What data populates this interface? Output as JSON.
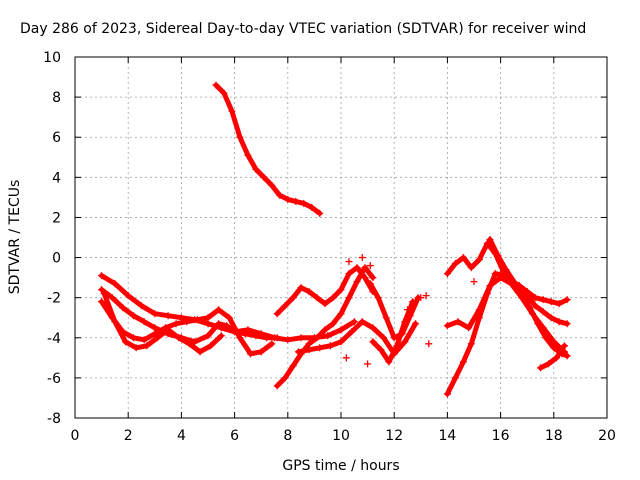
{
  "chart_data": {
    "type": "scatter",
    "title": "Day 286 of 2023, Sidereal Day-to-day VTEC variation (SDTVAR) for receiver wind",
    "xlabel": "GPS time / hours",
    "ylabel": "SDTVAR / TECUs",
    "xlim": [
      0,
      20
    ],
    "ylim": [
      -8,
      10
    ],
    "xticks": [
      0,
      2,
      4,
      6,
      8,
      10,
      12,
      14,
      16,
      18,
      20
    ],
    "yticks": [
      -8,
      -6,
      -4,
      -2,
      0,
      2,
      4,
      6,
      8,
      10
    ],
    "grid": true,
    "marker": "+",
    "color": "#ff0000",
    "series": [
      {
        "name": "arc-1",
        "x": [
          1.0,
          1.5,
          2.0,
          2.5,
          3.0,
          3.5,
          4.0,
          4.5,
          5.0,
          5.5,
          6.0,
          6.5,
          7.0,
          7.5,
          8.0,
          8.5,
          9.0,
          9.5,
          10.0,
          10.5
        ],
        "y": [
          -0.9,
          -1.3,
          -1.9,
          -2.4,
          -2.8,
          -2.9,
          -3.0,
          -3.1,
          -3.3,
          -3.5,
          -3.7,
          -3.6,
          -3.8,
          -4.0,
          -4.1,
          -4.0,
          -4.0,
          -3.9,
          -3.6,
          -3.2
        ]
      },
      {
        "name": "arc-2",
        "x": [
          1.0,
          1.4,
          1.8,
          2.2,
          2.6,
          3.0,
          3.5,
          4.0,
          4.5,
          5.0,
          5.4,
          5.7,
          6.0,
          6.4,
          6.8,
          7.2,
          7.6
        ],
        "y": [
          -1.6,
          -2.0,
          -2.5,
          -2.9,
          -3.2,
          -3.5,
          -3.8,
          -4.0,
          -4.2,
          -3.9,
          -3.3,
          -3.4,
          -3.7,
          -3.8,
          -3.9,
          -4.0,
          -4.0
        ]
      },
      {
        "name": "arc-3",
        "x": [
          1.0,
          1.4,
          1.8,
          2.2,
          2.6,
          3.0,
          3.4,
          3.8,
          4.2,
          4.6,
          5.0,
          5.4,
          5.8,
          6.2,
          6.6,
          7.0,
          7.4
        ],
        "y": [
          -2.2,
          -3.0,
          -3.7,
          -4.0,
          -4.1,
          -3.8,
          -3.5,
          -3.3,
          -3.2,
          -3.1,
          -3.0,
          -2.6,
          -3.0,
          -4.0,
          -4.8,
          -4.7,
          -4.3
        ]
      },
      {
        "name": "arc-4",
        "x": [
          1.1,
          1.5,
          1.9,
          2.3,
          2.7,
          3.1,
          3.5,
          3.9,
          4.3,
          4.7,
          5.1,
          5.5
        ],
        "y": [
          -1.8,
          -3.2,
          -4.2,
          -4.5,
          -4.4,
          -4.0,
          -3.6,
          -4.0,
          -4.3,
          -4.7,
          -4.4,
          -3.9
        ]
      },
      {
        "name": "arc-5",
        "x": [
          5.3,
          5.6,
          5.9,
          6.2,
          6.5,
          6.8,
          7.1,
          7.4,
          7.7,
          8.0,
          8.3,
          8.6,
          8.9,
          9.2
        ],
        "y": [
          8.6,
          8.2,
          7.3,
          6.0,
          5.1,
          4.4,
          4.0,
          3.6,
          3.1,
          2.9,
          2.8,
          2.7,
          2.5,
          2.2
        ]
      },
      {
        "name": "arc-6",
        "x": [
          7.6,
          7.9,
          8.2,
          8.5,
          8.8,
          9.1,
          9.4,
          9.7,
          10.0,
          10.3,
          10.6,
          10.9,
          11.2
        ],
        "y": [
          -2.8,
          -2.4,
          -2.0,
          -1.5,
          -1.7,
          -2.0,
          -2.3,
          -2.0,
          -1.6,
          -0.8,
          -0.5,
          -1.0,
          -1.7
        ]
      },
      {
        "name": "arc-7",
        "x": [
          7.6,
          7.9,
          8.2,
          8.5,
          8.8,
          9.1,
          9.4,
          9.7,
          10.0,
          10.3,
          10.6,
          10.9,
          11.2
        ],
        "y": [
          -6.4,
          -6.0,
          -5.4,
          -4.8,
          -4.3,
          -4.0,
          -3.6,
          -3.3,
          -2.8,
          -2.0,
          -1.2,
          -0.5,
          -1.0
        ]
      },
      {
        "name": "arc-8",
        "x": [
          8.4,
          8.8,
          9.2,
          9.6,
          10.0,
          10.4,
          10.8,
          11.2,
          11.6,
          12.0,
          12.4,
          12.8
        ],
        "y": [
          -4.7,
          -4.6,
          -4.5,
          -4.4,
          -4.2,
          -3.7,
          -3.2,
          -3.5,
          -4.0,
          -4.8,
          -4.2,
          -3.3
        ]
      },
      {
        "name": "arc-9",
        "x": [
          11.1,
          11.4,
          11.7,
          12.0,
          12.3,
          12.6,
          12.9
        ],
        "y": [
          -1.3,
          -2.0,
          -3.0,
          -4.0,
          -3.8,
          -2.9,
          -2.0
        ]
      },
      {
        "name": "arc-10",
        "x": [
          11.2,
          11.5,
          11.8,
          12.1,
          12.4,
          12.7
        ],
        "y": [
          -4.2,
          -4.6,
          -5.2,
          -4.4,
          -3.2,
          -2.2
        ]
      },
      {
        "name": "arc-11",
        "x": [
          14.0,
          14.3,
          14.6,
          14.9,
          15.2,
          15.5,
          15.8,
          16.1,
          16.4,
          16.7,
          17.0,
          17.3,
          17.6,
          17.9,
          18.2,
          18.5
        ],
        "y": [
          -0.8,
          -0.3,
          0.0,
          -0.5,
          -0.1,
          0.7,
          0.2,
          -0.7,
          -1.3,
          -1.4,
          -1.7,
          -2.0,
          -2.1,
          -2.2,
          -2.3,
          -2.1
        ]
      },
      {
        "name": "arc-12",
        "x": [
          14.0,
          14.3,
          14.6,
          14.9,
          15.2,
          15.5,
          15.8,
          16.1,
          16.4,
          16.7,
          17.0,
          17.3,
          17.6,
          17.9,
          18.2,
          18.5
        ],
        "y": [
          -6.8,
          -6.0,
          -5.2,
          -4.3,
          -3.0,
          -1.8,
          -0.8,
          -0.9,
          -1.2,
          -1.4,
          -1.9,
          -2.4,
          -2.7,
          -3.0,
          -3.2,
          -3.3
        ]
      },
      {
        "name": "arc-13",
        "x": [
          14.0,
          14.4,
          14.8,
          15.2,
          15.6,
          16.0,
          16.4,
          16.8,
          17.2,
          17.6,
          18.0,
          18.4
        ],
        "y": [
          -3.4,
          -3.2,
          -3.5,
          -2.6,
          -1.4,
          -1.0,
          -1.3,
          -2.0,
          -2.8,
          -3.5,
          -4.2,
          -4.7
        ]
      },
      {
        "name": "arc-14",
        "x": [
          15.6,
          15.9,
          16.2,
          16.5,
          16.8,
          17.1,
          17.4,
          17.7,
          18.0,
          18.3,
          18.5
        ],
        "y": [
          0.9,
          0.1,
          -0.6,
          -1.2,
          -1.8,
          -2.5,
          -3.3,
          -4.0,
          -4.5,
          -4.8,
          -4.9
        ]
      },
      {
        "name": "arc-15",
        "x": [
          17.5,
          17.8,
          18.1,
          18.4
        ],
        "y": [
          -5.5,
          -5.3,
          -5.0,
          -4.4
        ]
      }
    ],
    "scatter_points": {
      "x": [
        10.3,
        10.8,
        11.1,
        12.5,
        13.0,
        13.2,
        13.3,
        11.0,
        10.2,
        15.0
      ],
      "y": [
        -0.2,
        0.0,
        -0.4,
        -2.6,
        -2.0,
        -1.9,
        -4.3,
        -5.3,
        -5.0,
        -1.2
      ]
    }
  }
}
